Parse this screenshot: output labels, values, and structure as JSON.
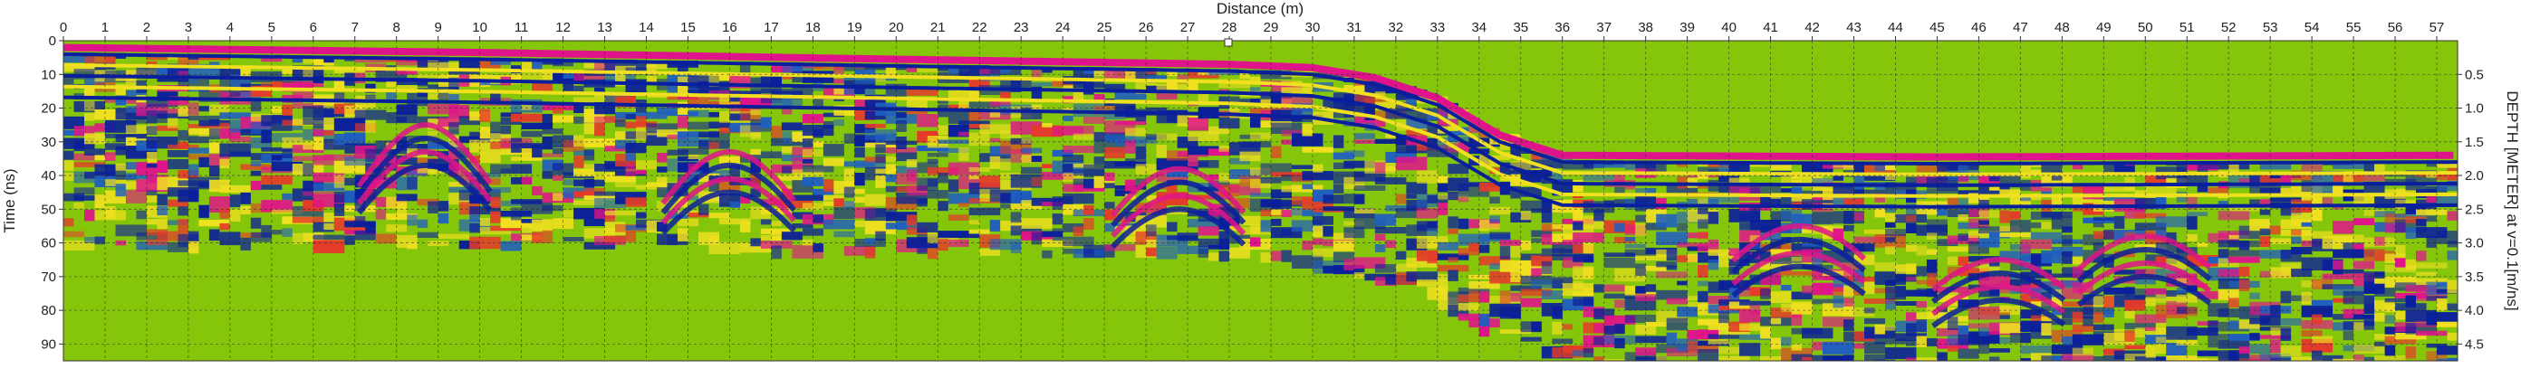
{
  "chart_data": {
    "type": "heatmap",
    "title": "",
    "xlabel": "Distance (m)",
    "ylabel": "Time (ns)",
    "y2label": "DEPTH [METER] at v=0.1[m/ns]",
    "xlim": [
      0,
      57.5
    ],
    "ylim": [
      95,
      0
    ],
    "y2lim": [
      4.75,
      0
    ],
    "x_ticks": [
      0,
      1,
      2,
      3,
      4,
      5,
      6,
      7,
      8,
      9,
      10,
      11,
      12,
      13,
      14,
      15,
      16,
      17,
      18,
      19,
      20,
      21,
      22,
      23,
      24,
      25,
      26,
      27,
      28,
      29,
      30,
      31,
      32,
      33,
      34,
      35,
      36,
      37,
      38,
      39,
      40,
      41,
      42,
      43,
      44,
      45,
      46,
      47,
      48,
      49,
      50,
      51,
      52,
      53,
      54,
      55,
      56,
      57
    ],
    "y_ticks": [
      0,
      10,
      20,
      30,
      40,
      50,
      60,
      70,
      80,
      90
    ],
    "y2_ticks": [
      "0.5",
      "1.0",
      "1.5",
      "2.0",
      "2.5",
      "3.0",
      "3.5",
      "4.0",
      "4.5"
    ],
    "y2_tick_values": [
      0.5,
      1.0,
      1.5,
      2.0,
      2.5,
      3.0,
      3.5,
      4.0,
      4.5
    ],
    "grid": true,
    "colors": {
      "background": "#86c60a",
      "amplitude_scale": [
        "#0a1f9c",
        "#1f5fbf",
        "#86c60a",
        "#f0e020",
        "#e53a2a",
        "#e0148a"
      ]
    },
    "surface_profile": {
      "x": [
        0,
        10,
        20,
        28,
        30,
        31.5,
        33,
        34.5,
        36,
        45,
        57.5
      ],
      "time_ns": [
        2,
        3.5,
        5.5,
        7,
        8,
        11,
        17,
        28,
        34,
        34.5,
        34
      ]
    },
    "data_extent_profile": {
      "x": [
        0,
        13.5,
        28,
        30,
        32,
        34,
        36,
        57.5
      ],
      "time_ns": [
        60,
        60,
        64,
        66,
        73,
        85,
        95,
        95
      ]
    },
    "hyperbolas": [
      {
        "x": 8.7,
        "time_ns": 25
      },
      {
        "x": 16.0,
        "time_ns": 33
      },
      {
        "x": 26.8,
        "time_ns": 38
      },
      {
        "x": 41.7,
        "time_ns": 55
      },
      {
        "x": 50.0,
        "time_ns": 58
      },
      {
        "x": 46.5,
        "time_ns": 65
      }
    ]
  }
}
